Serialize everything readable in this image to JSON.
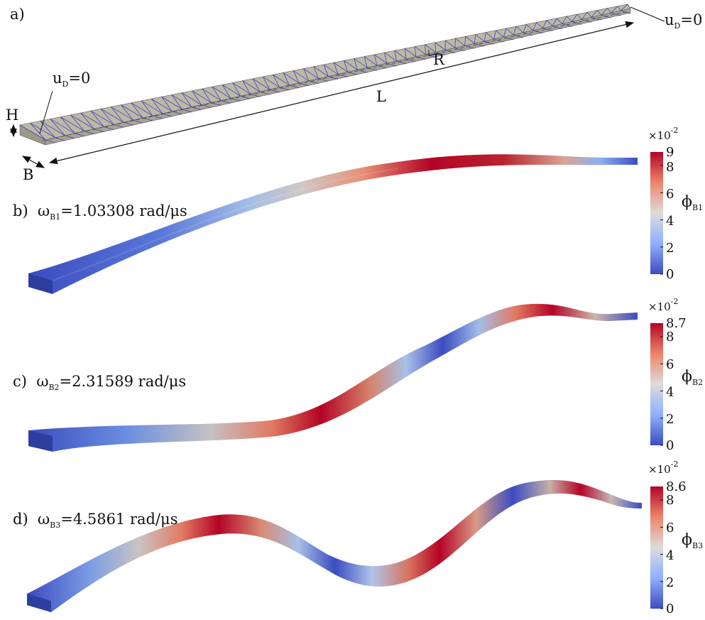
{
  "panel_a": {
    "tag": "a)",
    "ud_right": {
      "u": "u",
      "sub": "D",
      "eq": "=0"
    },
    "ud_left": {
      "u": "u",
      "sub": "D",
      "eq": "=0"
    },
    "dim_R": "R",
    "dim_L": "L",
    "dim_H": "H",
    "dim_B": "B"
  },
  "modes": [
    {
      "tag": "b)",
      "omega": "ω",
      "sub": "B1",
      "value": "=1.03308 rad/μs",
      "scale": {
        "x": "×10",
        "exp": "-2",
        "max_label": "9",
        "ticks": [
          "8",
          "6",
          "4",
          "2",
          "0"
        ]
      },
      "phi": "ϕ",
      "phi_sub": "B1"
    },
    {
      "tag": "c)",
      "omega": "ω",
      "sub": "B2",
      "value": "=2.31589 rad/μs",
      "scale": {
        "x": "×10",
        "exp": "-2",
        "max_label": "8.7",
        "ticks": [
          "8",
          "6",
          "4",
          "2",
          "0"
        ]
      },
      "phi": "ϕ",
      "phi_sub": "B2"
    },
    {
      "tag": "d)",
      "omega": "ω",
      "sub": "B3",
      "value": "=4.5861 rad/μs",
      "scale": {
        "x": "×10",
        "exp": "-2",
        "max_label": "8.6",
        "ticks": [
          "8",
          "6",
          "4",
          "2",
          "0"
        ]
      },
      "phi": "ϕ",
      "phi_sub": "B3"
    }
  ],
  "colors": {
    "low": "#3a4cc0",
    "mid": "#dddddd",
    "high": "#b40426",
    "beam_gray": "#b3b09c",
    "mesh": "#2a2ad0"
  }
}
